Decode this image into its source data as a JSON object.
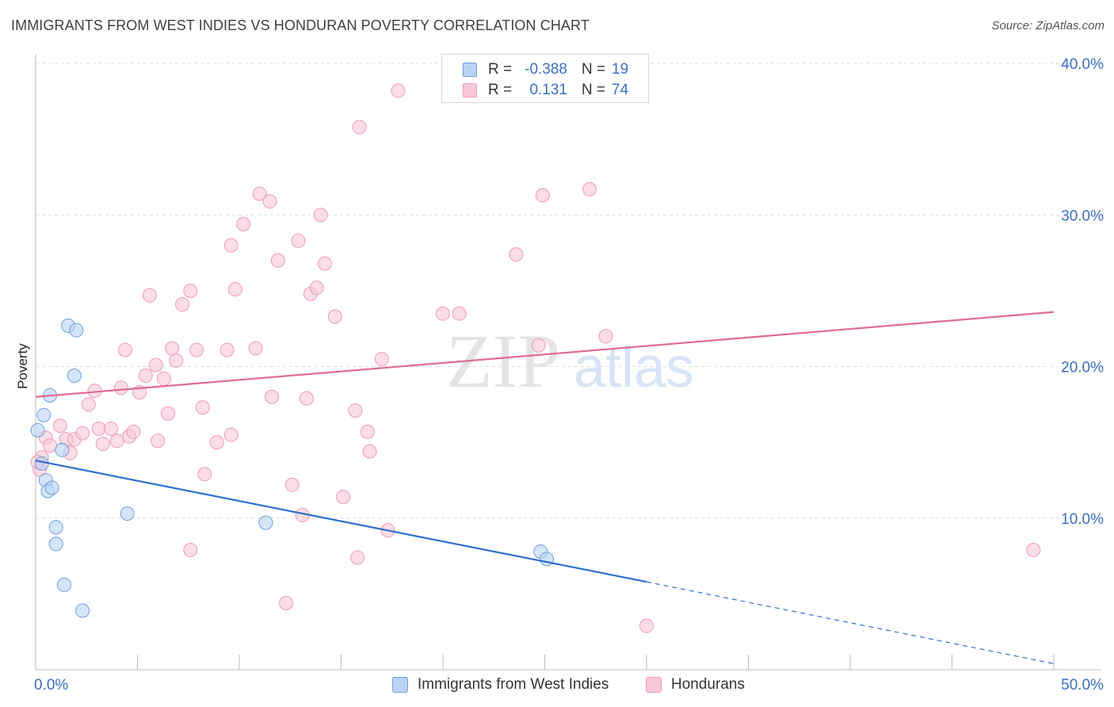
{
  "title": "IMMIGRANTS FROM WEST INDIES VS HONDURAN POVERTY CORRELATION CHART",
  "source": "Source: ZipAtlas.com",
  "watermark": {
    "zip": "ZIP",
    "atlas": "atlas"
  },
  "colors": {
    "blue_fill": "#b9d3f5",
    "blue_stroke": "#6f9fdc",
    "blue_line": "#2f6fd0",
    "pink_fill": "#f9c6d6",
    "pink_stroke": "#ee9bb5",
    "pink_line": "#e06a94",
    "axis_label": "#3a6fc4",
    "grid": "#dcdcdc"
  },
  "legend": {
    "rows": [
      {
        "r_label": "R =",
        "r_value": "-0.388",
        "n_label": "N =",
        "n_value": "19",
        "series": "blue"
      },
      {
        "r_label": "R =",
        "r_value": "0.131",
        "n_label": "N =",
        "n_value": "74",
        "series": "pink"
      }
    ]
  },
  "bottom_legend": [
    {
      "label": "Immigrants from West Indies",
      "series": "blue"
    },
    {
      "label": "Hondurans",
      "series": "pink"
    }
  ],
  "chart_data": {
    "type": "scatter",
    "xlim": [
      0,
      50
    ],
    "ylim": [
      0,
      40
    ],
    "ylabel": "Poverty",
    "xlabel": "",
    "x_tick_labels": [
      {
        "value": 0,
        "label": "0.0%"
      },
      {
        "value": 50,
        "label": "50.0%"
      }
    ],
    "y_tick_labels": [
      {
        "value": 10,
        "label": "10.0%"
      },
      {
        "value": 20,
        "label": "20.0%"
      },
      {
        "value": 30,
        "label": "30.0%"
      },
      {
        "value": 40,
        "label": "40.0%"
      }
    ],
    "y_gridlines": [
      10,
      20,
      30,
      40
    ],
    "series": [
      {
        "name": "Immigrants from West Indies",
        "color": "blue",
        "points": [
          [
            0.1,
            15.8
          ],
          [
            0.4,
            16.8
          ],
          [
            0.7,
            18.1
          ],
          [
            0.3,
            13.6
          ],
          [
            0.5,
            12.5
          ],
          [
            0.6,
            11.8
          ],
          [
            0.8,
            12.0
          ],
          [
            1.3,
            14.5
          ],
          [
            1.6,
            22.7
          ],
          [
            2.0,
            22.4
          ],
          [
            1.9,
            19.4
          ],
          [
            1.0,
            9.4
          ],
          [
            1.0,
            8.3
          ],
          [
            1.4,
            5.6
          ],
          [
            2.3,
            3.9
          ],
          [
            4.5,
            10.3
          ],
          [
            11.3,
            9.7
          ],
          [
            24.8,
            7.8
          ],
          [
            25.1,
            7.3
          ]
        ],
        "trend": {
          "x0": 0,
          "y0": 13.8,
          "x1": 30,
          "y1": 5.8,
          "dash_to_x": 50,
          "dash_to_y": 0.4
        }
      },
      {
        "name": "Hondurans",
        "color": "pink",
        "points": [
          [
            0.2,
            13.2
          ],
          [
            0.3,
            14.0
          ],
          [
            0.5,
            15.3
          ],
          [
            0.7,
            14.8
          ],
          [
            1.2,
            16.1
          ],
          [
            1.5,
            15.2
          ],
          [
            1.7,
            14.3
          ],
          [
            1.9,
            15.2
          ],
          [
            2.3,
            15.6
          ],
          [
            2.6,
            17.5
          ],
          [
            2.9,
            18.4
          ],
          [
            3.1,
            15.9
          ],
          [
            3.3,
            14.9
          ],
          [
            3.7,
            15.9
          ],
          [
            4.0,
            15.1
          ],
          [
            4.2,
            18.6
          ],
          [
            4.4,
            21.1
          ],
          [
            4.6,
            15.4
          ],
          [
            4.8,
            15.7
          ],
          [
            5.1,
            18.3
          ],
          [
            5.4,
            19.4
          ],
          [
            5.6,
            24.7
          ],
          [
            5.9,
            20.1
          ],
          [
            6.0,
            15.1
          ],
          [
            6.3,
            19.2
          ],
          [
            6.5,
            16.9
          ],
          [
            6.7,
            21.2
          ],
          [
            6.9,
            20.4
          ],
          [
            7.2,
            24.1
          ],
          [
            7.6,
            25.0
          ],
          [
            7.9,
            21.1
          ],
          [
            8.2,
            17.3
          ],
          [
            8.3,
            12.9
          ],
          [
            7.6,
            7.9
          ],
          [
            8.9,
            15.0
          ],
          [
            9.4,
            21.1
          ],
          [
            9.6,
            15.5
          ],
          [
            9.6,
            28.0
          ],
          [
            9.8,
            25.1
          ],
          [
            10.2,
            29.4
          ],
          [
            10.8,
            21.2
          ],
          [
            11.0,
            31.4
          ],
          [
            11.5,
            30.9
          ],
          [
            11.6,
            18.0
          ],
          [
            11.9,
            27.0
          ],
          [
            12.3,
            4.4
          ],
          [
            12.6,
            12.2
          ],
          [
            12.9,
            28.3
          ],
          [
            13.1,
            10.2
          ],
          [
            13.3,
            17.9
          ],
          [
            13.5,
            24.8
          ],
          [
            13.8,
            25.2
          ],
          [
            14.0,
            30.0
          ],
          [
            14.2,
            26.8
          ],
          [
            14.7,
            23.3
          ],
          [
            15.1,
            11.4
          ],
          [
            15.9,
            35.8
          ],
          [
            15.7,
            17.1
          ],
          [
            15.8,
            7.4
          ],
          [
            16.3,
            15.7
          ],
          [
            16.4,
            14.4
          ],
          [
            17.0,
            20.5
          ],
          [
            17.3,
            9.2
          ],
          [
            17.8,
            38.2
          ],
          [
            20.0,
            23.5
          ],
          [
            20.8,
            23.5
          ],
          [
            23.6,
            27.4
          ],
          [
            24.7,
            21.4
          ],
          [
            24.9,
            31.3
          ],
          [
            27.2,
            31.7
          ],
          [
            28.0,
            22.0
          ],
          [
            30.0,
            2.9
          ],
          [
            49.0,
            7.9
          ],
          [
            0.1,
            13.7
          ]
        ],
        "trend": {
          "x0": 0,
          "y0": 18.0,
          "x1": 50,
          "y1": 23.6
        }
      }
    ]
  }
}
